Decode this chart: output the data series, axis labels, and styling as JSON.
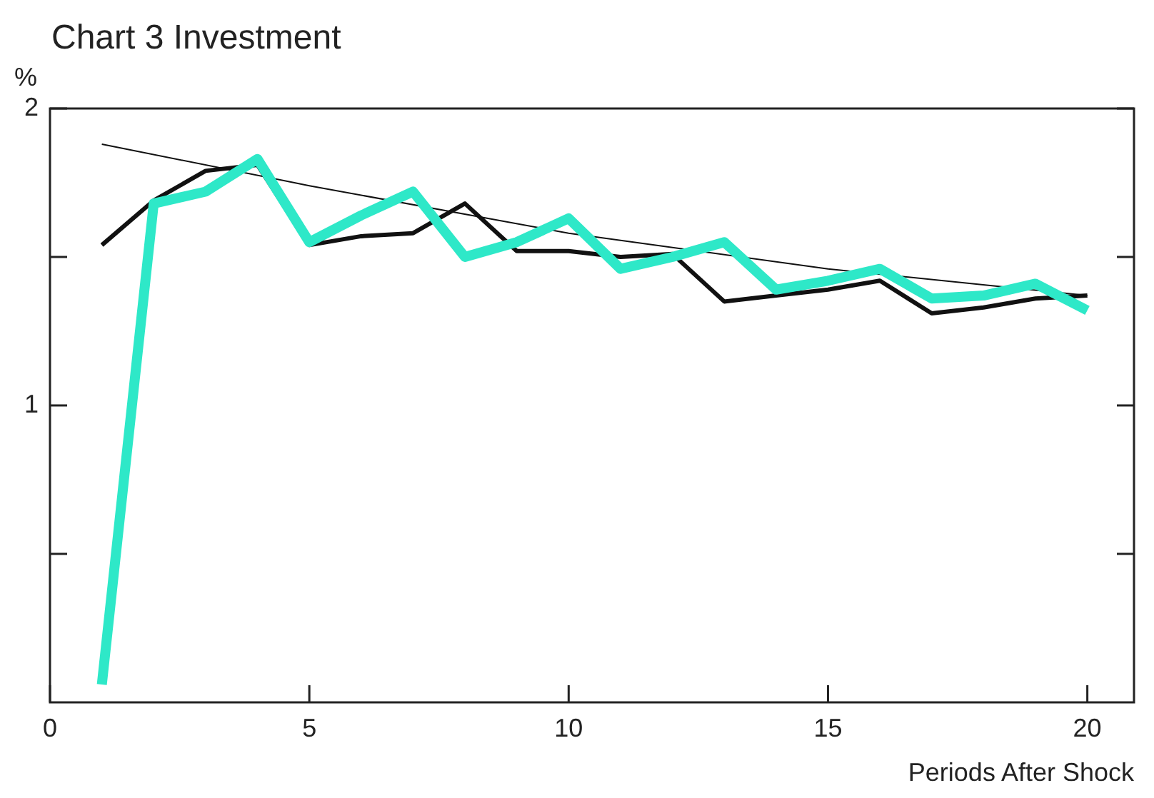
{
  "chart_data": {
    "type": "line",
    "title": "Chart 3 Investment",
    "ylabel": "%",
    "xlabel": "Periods After Shock",
    "xlim": [
      0,
      20.9
    ],
    "xticks": [
      0,
      5,
      10,
      15,
      20
    ],
    "ylim": [
      0,
      2
    ],
    "yticks": [
      {
        "value": 0.5,
        "label": null
      },
      1,
      {
        "value": 1.5,
        "label": null
      },
      2
    ],
    "grid": false,
    "legend": false,
    "marker": "none",
    "line_style": "solid",
    "series": [
      {
        "color": "#2ee8c8",
        "x": [
          1,
          2,
          3,
          4,
          5,
          6,
          7,
          8,
          9,
          10,
          11,
          12,
          13,
          14,
          15,
          16,
          17,
          18,
          19,
          20
        ],
        "values": [
          0.06,
          1.68,
          1.72,
          1.83,
          1.55,
          1.64,
          1.72,
          1.5,
          1.55,
          1.63,
          1.46,
          1.5,
          1.55,
          1.39,
          1.42,
          1.46,
          1.36,
          1.37,
          1.41,
          1.32
        ]
      },
      {
        "color": "#111111",
        "x": [
          1,
          2,
          3,
          4,
          5,
          6,
          7,
          8,
          9,
          10,
          11,
          12,
          13,
          14,
          15,
          16,
          17,
          18,
          19,
          20
        ],
        "values": [
          1.54,
          1.69,
          1.79,
          1.81,
          1.54,
          1.57,
          1.58,
          1.68,
          1.52,
          1.52,
          1.5,
          1.51,
          1.35,
          1.37,
          1.39,
          1.42,
          1.31,
          1.33,
          1.36,
          1.37
        ]
      },
      {
        "color": "#111111",
        "x": [
          1,
          5,
          10,
          15,
          20
        ],
        "values": [
          1.88,
          1.74,
          1.58,
          1.46,
          1.37
        ]
      }
    ]
  }
}
